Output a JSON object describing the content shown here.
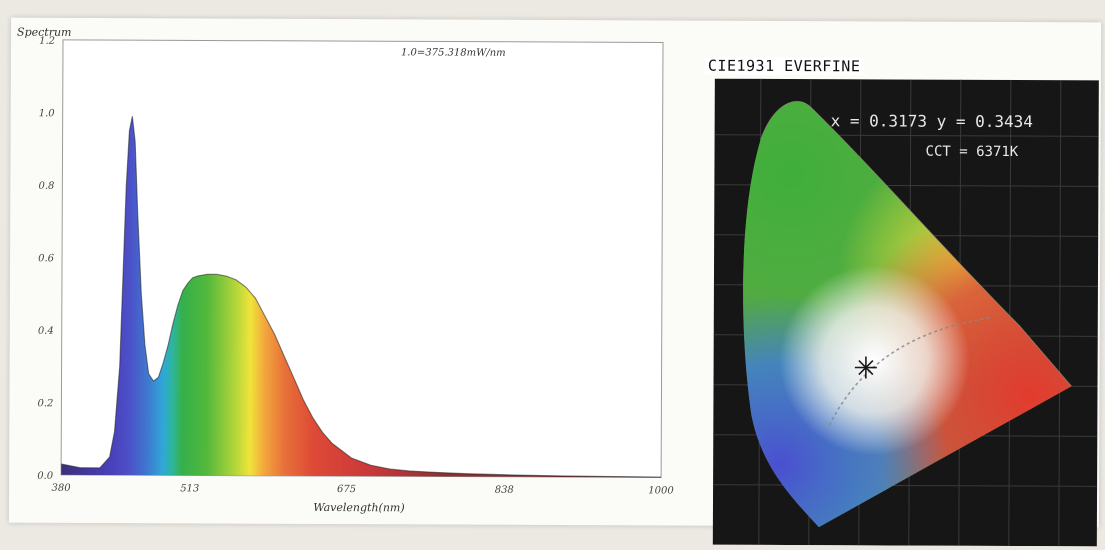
{
  "chart_data": [
    {
      "type": "area",
      "title": "Spectrum",
      "annotation": "1.0=375.318mW/nm",
      "xlabel": "Wavelength(nm)",
      "ylabel": "",
      "xlim": [
        380,
        1000
      ],
      "ylim": [
        0,
        1.2
      ],
      "x_ticks": [
        "380",
        "513",
        "675",
        "838",
        "1000"
      ],
      "y_ticks": [
        "0.0",
        "0.2",
        "0.4",
        "0.6",
        "0.8",
        "1.0",
        "1.2"
      ],
      "grid": false,
      "fill": "visible-spectrum-gradient",
      "x": [
        380,
        400,
        420,
        430,
        435,
        440,
        443,
        446,
        449,
        452,
        455,
        458,
        462,
        466,
        470,
        475,
        480,
        485,
        490,
        495,
        500,
        505,
        510,
        515,
        520,
        530,
        540,
        550,
        560,
        570,
        580,
        590,
        600,
        610,
        620,
        630,
        640,
        650,
        660,
        670,
        680,
        690,
        700,
        720,
        740,
        760,
        780,
        800,
        850,
        900,
        950,
        1000
      ],
      "y": [
        0.03,
        0.02,
        0.02,
        0.05,
        0.12,
        0.3,
        0.55,
        0.8,
        0.95,
        0.99,
        0.92,
        0.72,
        0.5,
        0.36,
        0.28,
        0.26,
        0.27,
        0.31,
        0.36,
        0.42,
        0.47,
        0.51,
        0.53,
        0.545,
        0.55,
        0.555,
        0.555,
        0.55,
        0.54,
        0.52,
        0.49,
        0.44,
        0.39,
        0.33,
        0.27,
        0.21,
        0.16,
        0.12,
        0.09,
        0.07,
        0.05,
        0.04,
        0.03,
        0.02,
        0.015,
        0.012,
        0.01,
        0.008,
        0.005,
        0.003,
        0.002,
        0.001
      ]
    },
    {
      "type": "scatter",
      "title": "CIE1931 EVERFINE",
      "readout_xy": "x = 0.3173  y = 0.3434",
      "readout_cct": "CCT = 6371K",
      "points": [
        {
          "x": 0.3173,
          "y": 0.3434
        }
      ],
      "marker": "star",
      "background": "chromaticity-diagram"
    }
  ]
}
